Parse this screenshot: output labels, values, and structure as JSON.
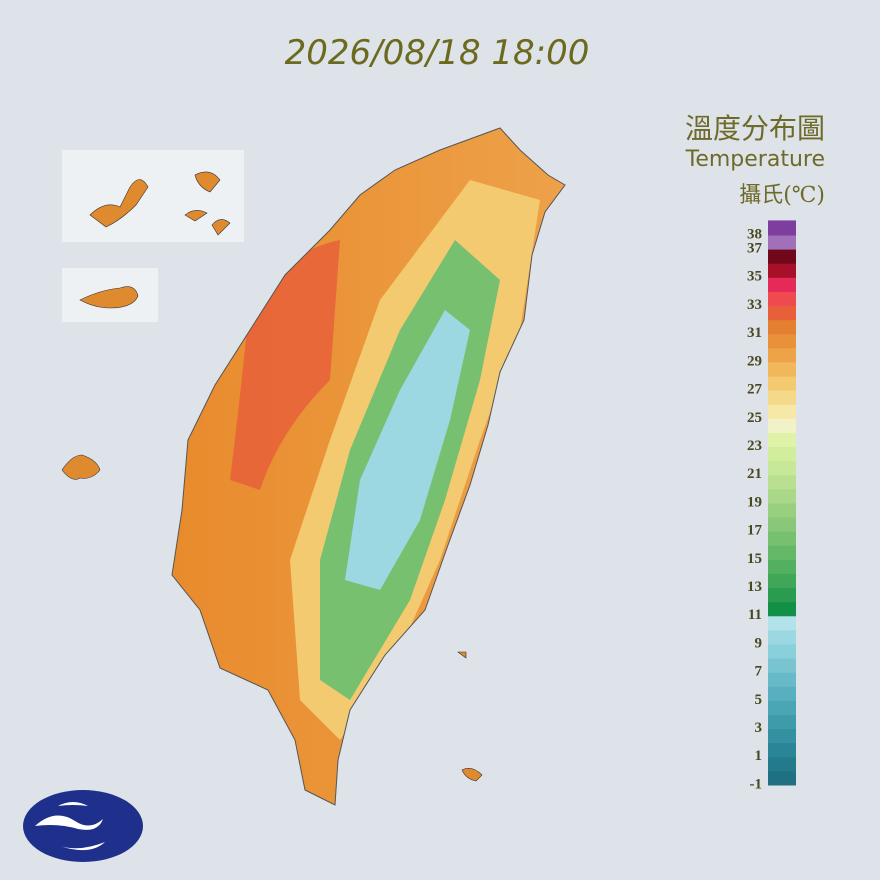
{
  "header": {
    "timestamp": "2026/08/18 18:00",
    "title": "溫度分布圖",
    "subtitle": "Temperature",
    "unit": "攝氏(℃)"
  },
  "legend": {
    "labels": [
      38,
      37,
      35,
      33,
      31,
      29,
      27,
      25,
      23,
      21,
      19,
      17,
      15,
      13,
      11,
      9,
      7,
      5,
      3,
      1,
      -1
    ],
    "colors": [
      "#1f7080",
      "#227a8a",
      "#2a8696",
      "#3491a0",
      "#3e9caa",
      "#4aa6b4",
      "#58b0be",
      "#68bac8",
      "#78c4d0",
      "#8ad0da",
      "#9cd8e2",
      "#b2e2ea",
      "#129048",
      "#2a9c50",
      "#40a658",
      "#52b060",
      "#64b868",
      "#76c070",
      "#88c878",
      "#98d080",
      "#a8d888",
      "#b8e090",
      "#c6e898",
      "#d2ee9c",
      "#e0f2a8",
      "#f2f2c8",
      "#f7e8a8",
      "#f5d98a",
      "#f3ca70",
      "#f0b85a",
      "#eda448",
      "#e8903a",
      "#e47e30",
      "#e8603a",
      "#ee4a50",
      "#e52a5a",
      "#a8102a",
      "#70081a",
      "#a070b8",
      "#7e3ea0"
    ]
  }
}
